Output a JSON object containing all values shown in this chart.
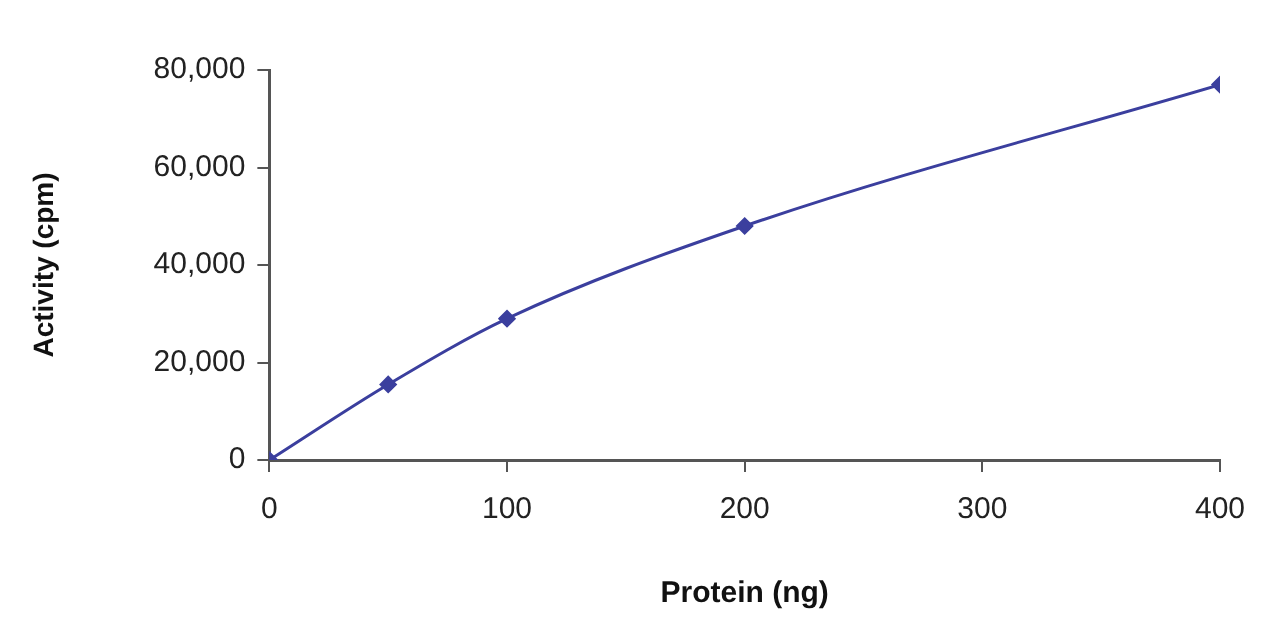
{
  "chart_data": {
    "type": "line",
    "xlabel": "Protein (ng)",
    "ylabel": "Activity (cpm)",
    "x": [
      0,
      50,
      100,
      200,
      400
    ],
    "series": [
      {
        "color": "#3b3f9e",
        "values": [
          0,
          15500,
          29000,
          48000,
          77000
        ]
      }
    ],
    "xlim": [
      0,
      400
    ],
    "xticks": [
      0,
      100,
      200,
      300,
      400
    ],
    "ylim": [
      0,
      80000
    ],
    "yticks": [
      {
        "value": 0,
        "label": "0"
      },
      {
        "value": 20000,
        "label": "20,000"
      },
      {
        "value": 40000,
        "label": "40,000"
      },
      {
        "value": 60000,
        "label": "60,000"
      },
      {
        "value": 80000,
        "label": "80,000"
      }
    ],
    "grid": false,
    "legend": false,
    "marker": "diamond",
    "line_style": "solid"
  }
}
